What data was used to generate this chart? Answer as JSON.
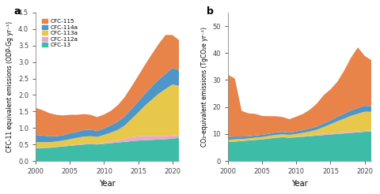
{
  "years": [
    2000,
    2001,
    2002,
    2003,
    2004,
    2005,
    2006,
    2007,
    2008,
    2009,
    2010,
    2011,
    2012,
    2013,
    2014,
    2015,
    2016,
    2017,
    2018,
    2019,
    2020,
    2021
  ],
  "panel_a": {
    "CFC-13": [
      0.38,
      0.39,
      0.4,
      0.42,
      0.44,
      0.46,
      0.48,
      0.5,
      0.51,
      0.5,
      0.52,
      0.54,
      0.56,
      0.58,
      0.6,
      0.62,
      0.63,
      0.64,
      0.65,
      0.66,
      0.68,
      0.7
    ],
    "CFC-112a": [
      0.01,
      0.01,
      0.01,
      0.01,
      0.01,
      0.02,
      0.02,
      0.02,
      0.02,
      0.02,
      0.03,
      0.04,
      0.06,
      0.09,
      0.12,
      0.13,
      0.13,
      0.12,
      0.11,
      0.1,
      0.09,
      0.08
    ],
    "CFC-113a": [
      0.18,
      0.17,
      0.16,
      0.16,
      0.17,
      0.18,
      0.2,
      0.22,
      0.22,
      0.21,
      0.24,
      0.28,
      0.32,
      0.4,
      0.55,
      0.72,
      0.92,
      1.1,
      1.28,
      1.42,
      1.55,
      1.5
    ],
    "CFC-114a": [
      0.22,
      0.2,
      0.18,
      0.16,
      0.16,
      0.18,
      0.18,
      0.2,
      0.2,
      0.18,
      0.2,
      0.22,
      0.25,
      0.28,
      0.3,
      0.33,
      0.36,
      0.4,
      0.43,
      0.46,
      0.5,
      0.48
    ],
    "CFC-115": [
      0.82,
      0.77,
      0.7,
      0.65,
      0.6,
      0.56,
      0.52,
      0.48,
      0.45,
      0.42,
      0.42,
      0.44,
      0.5,
      0.58,
      0.68,
      0.78,
      0.88,
      0.98,
      1.08,
      1.18,
      1.0,
      0.9
    ]
  },
  "panel_b": {
    "CFC-13": [
      7.0,
      7.2,
      7.4,
      7.6,
      7.8,
      8.0,
      8.3,
      8.6,
      8.8,
      8.6,
      8.8,
      9.0,
      9.2,
      9.4,
      9.6,
      9.8,
      10.0,
      10.2,
      10.4,
      10.6,
      10.8,
      11.0
    ],
    "CFC-112a": [
      0.05,
      0.05,
      0.05,
      0.05,
      0.05,
      0.08,
      0.08,
      0.08,
      0.08,
      0.08,
      0.12,
      0.16,
      0.24,
      0.36,
      0.48,
      0.52,
      0.52,
      0.48,
      0.44,
      0.4,
      0.36,
      0.32
    ],
    "CFC-113a": [
      0.8,
      0.8,
      0.7,
      0.7,
      0.8,
      0.8,
      0.9,
      1.0,
      1.0,
      1.0,
      1.1,
      1.3,
      1.5,
      1.8,
      2.5,
      3.3,
      4.2,
      5.0,
      5.9,
      6.5,
      7.1,
      6.9
    ],
    "CFC-114a": [
      1.1,
      1.0,
      0.9,
      0.8,
      0.8,
      0.8,
      0.8,
      0.9,
      0.9,
      0.8,
      0.9,
      1.0,
      1.1,
      1.2,
      1.3,
      1.4,
      1.6,
      1.8,
      2.0,
      2.1,
      2.2,
      2.1
    ],
    "CFC-115": [
      23.0,
      21.5,
      9.5,
      8.5,
      8.0,
      7.0,
      6.5,
      6.0,
      5.5,
      5.0,
      5.5,
      6.0,
      7.0,
      8.5,
      10.5,
      11.5,
      13.0,
      16.0,
      19.5,
      22.5,
      18.5,
      17.0
    ]
  },
  "colors": {
    "CFC-115": "#E8834A",
    "CFC-114a": "#4E96C8",
    "CFC-113a": "#E8C84A",
    "CFC-112a": "#E8A8C8",
    "CFC-13": "#3DBDA8"
  },
  "ylabel_a": "CFC-11 equivalent emissions (ODP-Gg yr⁻¹)",
  "ylabel_b": "CO₂-equivalent emissions (TgCO₂e yr⁻¹)",
  "xlabel": "Year",
  "ylim_a": [
    0,
    4.5
  ],
  "ylim_b": [
    0,
    55
  ],
  "yticks_a": [
    0,
    0.5,
    1.0,
    1.5,
    2.0,
    2.5,
    3.0,
    3.5,
    4.0,
    4.5
  ],
  "yticks_b": [
    0,
    10,
    20,
    30,
    40,
    50
  ],
  "xlim": [
    2000,
    2021
  ],
  "xticks": [
    2000,
    2005,
    2010,
    2015,
    2020
  ],
  "bg_color": "#FFFFFF",
  "legend_order": [
    "CFC-115",
    "CFC-114a",
    "CFC-113a",
    "CFC-112a",
    "CFC-13"
  ]
}
